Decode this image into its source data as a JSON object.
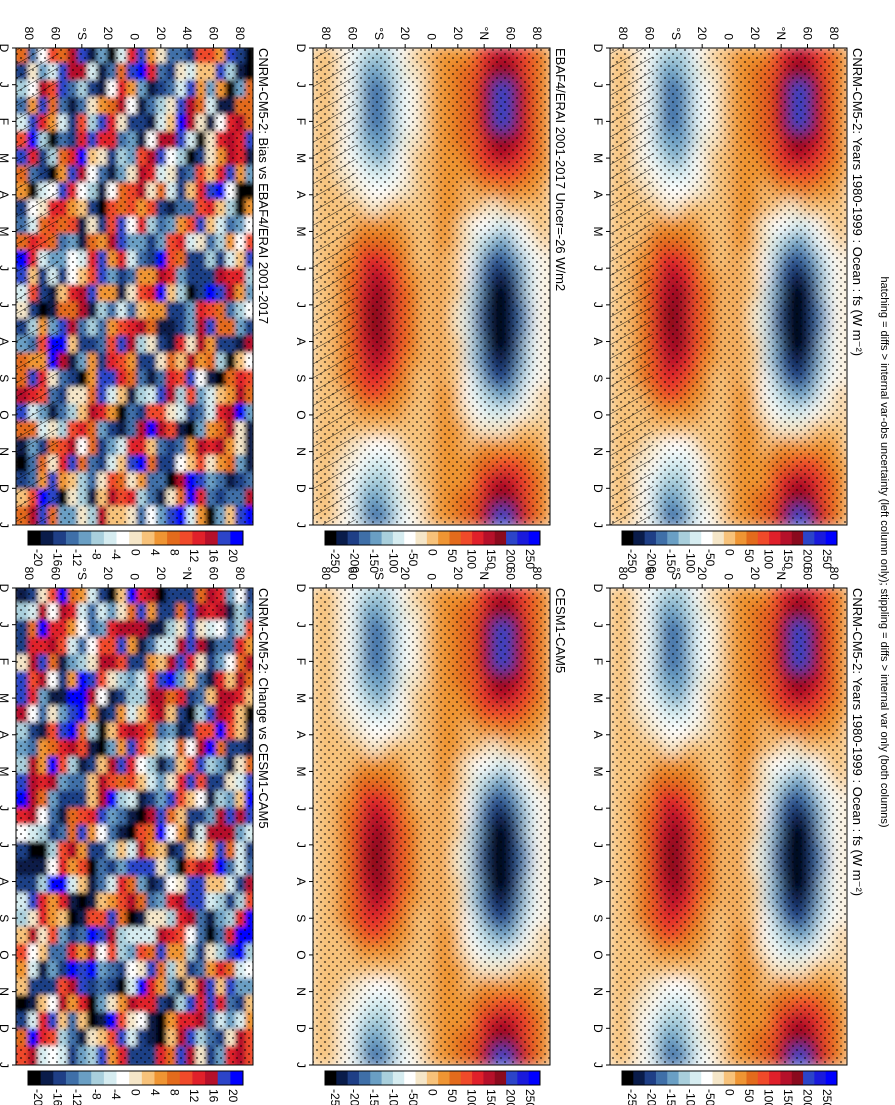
{
  "figure": {
    "footnote": "hatching = diffs > internal var-obs uncertainty (left column only); stippling = diffs > internal var only (both columns)"
  },
  "chart_data": [
    {
      "type": "heatmap",
      "id": "p1",
      "title": "CNRM-CM5-2: Years 1980-1999 : Ocean : fs (W m⁻²)",
      "months": [
        "D",
        "J",
        "F",
        "M",
        "A",
        "M",
        "J",
        "J",
        "A",
        "S",
        "O",
        "N",
        "D",
        "J"
      ],
      "lat_ticks": [
        "80",
        "60",
        "°N",
        "20",
        "0",
        "20",
        "°S",
        "60",
        "80"
      ],
      "colorbar": [
        "250",
        "200",
        "150",
        "100",
        "50",
        "0",
        "-50",
        "-100",
        "-150",
        "-200",
        "-250"
      ],
      "range": [
        -260,
        260
      ],
      "mode": "mean",
      "hatching": true
    },
    {
      "type": "heatmap",
      "id": "p2",
      "title": "CNRM-CM5-2: Years 1980-1999 : Ocean : fs (W m⁻²)",
      "months": [
        "D",
        "J",
        "F",
        "M",
        "A",
        "M",
        "J",
        "J",
        "A",
        "S",
        "O",
        "N",
        "D",
        "J"
      ],
      "lat_ticks": [
        "80",
        "60",
        "°N",
        "20",
        "0",
        "20",
        "°S",
        "60",
        "80"
      ],
      "colorbar": [
        "250",
        "200",
        "150",
        "100",
        "50",
        "0",
        "-50",
        "-100",
        "-150",
        "-200",
        "-250"
      ],
      "range": [
        -260,
        260
      ],
      "mode": "mean",
      "hatching": false
    },
    {
      "type": "heatmap",
      "id": "p3",
      "title": "EBAF4/ERAI 2001-2017 Uncer=-26 W/m2",
      "months": [
        "D",
        "J",
        "F",
        "M",
        "A",
        "M",
        "J",
        "J",
        "A",
        "S",
        "O",
        "N",
        "D",
        "J"
      ],
      "lat_ticks": [
        "80",
        "60",
        "°N",
        "20",
        "0",
        "20",
        "°S",
        "60",
        "80"
      ],
      "colorbar": [
        "250",
        "200",
        "150",
        "100",
        "50",
        "0",
        "-50",
        "-100",
        "-150",
        "-200",
        "-250"
      ],
      "range": [
        -260,
        260
      ],
      "mode": "mean",
      "hatching": true
    },
    {
      "type": "heatmap",
      "id": "p4",
      "title": "CESM1-CAM5",
      "months": [
        "D",
        "J",
        "F",
        "M",
        "A",
        "M",
        "J",
        "J",
        "A",
        "S",
        "O",
        "N",
        "D",
        "J"
      ],
      "lat_ticks": [
        "80",
        "60",
        "°N",
        "20",
        "0",
        "20",
        "°S",
        "60",
        "80"
      ],
      "colorbar": [
        "250",
        "200",
        "150",
        "100",
        "50",
        "0",
        "-50",
        "-100",
        "-150",
        "-200",
        "-250"
      ],
      "range": [
        -260,
        260
      ],
      "mode": "mean",
      "hatching": false
    },
    {
      "type": "heatmap",
      "id": "p5",
      "title": "CNRM-CM5-2: Bias vs EBAF4/ERAI 2001-2017",
      "months": [
        "D",
        "J",
        "F",
        "M",
        "A",
        "M",
        "J",
        "J",
        "A",
        "S",
        "O",
        "N",
        "D",
        "J"
      ],
      "lat_ticks": [
        "80",
        "60",
        "40",
        "20",
        "0",
        "20",
        "°S",
        "60",
        "80"
      ],
      "lat_ticks_extra": "°N",
      "colorbar": [
        "20",
        "16",
        "12",
        "8",
        "4",
        "0",
        "-4",
        "-8",
        "-12",
        "-16",
        "-20"
      ],
      "range": [
        -22,
        22
      ],
      "mode": "diff",
      "hatching": true
    },
    {
      "type": "heatmap",
      "id": "p6",
      "title": "CNRM-CM5-2: Change vs CESM1-CAM5",
      "months": [
        "D",
        "J",
        "F",
        "M",
        "A",
        "M",
        "J",
        "J",
        "A",
        "S",
        "O",
        "N",
        "D",
        "J"
      ],
      "lat_ticks": [
        "80",
        "60",
        "°N",
        "20",
        "0",
        "20",
        "°S",
        "60",
        "80"
      ],
      "colorbar": [
        "20",
        "16",
        "12",
        "8",
        "4",
        "0",
        "-4",
        "-8",
        "-12",
        "-16",
        "-20"
      ],
      "range": [
        -22,
        22
      ],
      "mode": "diff",
      "hatching": false
    }
  ]
}
